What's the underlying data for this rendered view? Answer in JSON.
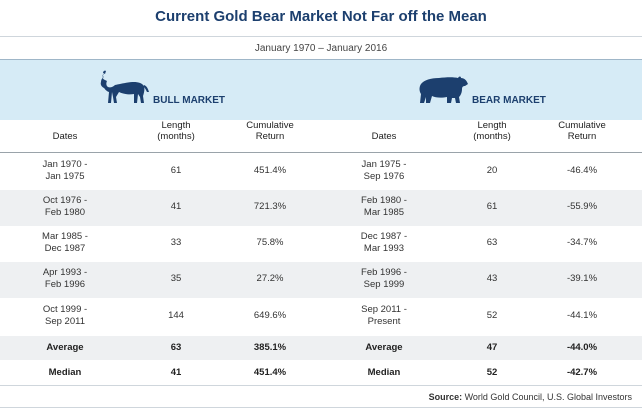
{
  "title": "Current Gold Bear Market Not Far off the Mean",
  "subtitle": "January 1970 – January 2016",
  "bull": {
    "label": "BULL MARKET",
    "icon": "bull-icon"
  },
  "bear": {
    "label": "BEAR MARKET",
    "icon": "bear-icon"
  },
  "headers": {
    "bull_dates": "Dates",
    "bull_length_1": "Length",
    "bull_length_2": "(months)",
    "bull_return_1": "Cumulative",
    "bull_return_2": "Return",
    "bear_dates": "Dates",
    "bear_length_1": "Length",
    "bear_length_2": "(months)",
    "bear_return_1": "Cumulative",
    "bear_return_2": "Return"
  },
  "rows": [
    {
      "bull_dates_1": "Jan 1970 -",
      "bull_dates_2": "Jan 1975",
      "bull_length": "61",
      "bull_return": "451.4%",
      "bear_dates_1": "Jan 1975 -",
      "bear_dates_2": "Sep 1976",
      "bear_length": "20",
      "bear_return": "-46.4%"
    },
    {
      "bull_dates_1": "Oct 1976 -",
      "bull_dates_2": "Feb 1980",
      "bull_length": "41",
      "bull_return": "721.3%",
      "bear_dates_1": "Feb 1980 -",
      "bear_dates_2": "Mar 1985",
      "bear_length": "61",
      "bear_return": "-55.9%"
    },
    {
      "bull_dates_1": "Mar 1985 -",
      "bull_dates_2": "Dec 1987",
      "bull_length": "33",
      "bull_return": "75.8%",
      "bear_dates_1": "Dec 1987 -",
      "bear_dates_2": "Mar 1993",
      "bear_length": "63",
      "bear_return": "-34.7%"
    },
    {
      "bull_dates_1": "Apr 1993 -",
      "bull_dates_2": "Feb 1996",
      "bull_length": "35",
      "bull_return": "27.2%",
      "bear_dates_1": "Feb 1996 -",
      "bear_dates_2": "Sep 1999",
      "bear_length": "43",
      "bear_return": "-39.1%"
    },
    {
      "bull_dates_1": "Oct 1999 -",
      "bull_dates_2": "Sep 2011",
      "bull_length": "144",
      "bull_return": "649.6%",
      "bear_dates_1": "Sep 2011 -",
      "bear_dates_2": "Present",
      "bear_length": "52",
      "bear_return": "-44.1%"
    }
  ],
  "average": {
    "label": "Average",
    "bull_length": "63",
    "bull_return": "385.1%",
    "bear_label": "Average",
    "bear_length": "47",
    "bear_return": "-44.0%"
  },
  "median": {
    "label": "Median",
    "bull_length": "41",
    "bull_return": "451.4%",
    "bear_label": "Median",
    "bear_length": "52",
    "bear_return": "-42.7%"
  },
  "source": {
    "prefix": "Source:",
    "text": " World Gold Council, U.S. Global Investors"
  },
  "colors": {
    "title": "#1c3f6e",
    "band": "#d6ebf6",
    "alt_row": "#eef0f2"
  }
}
